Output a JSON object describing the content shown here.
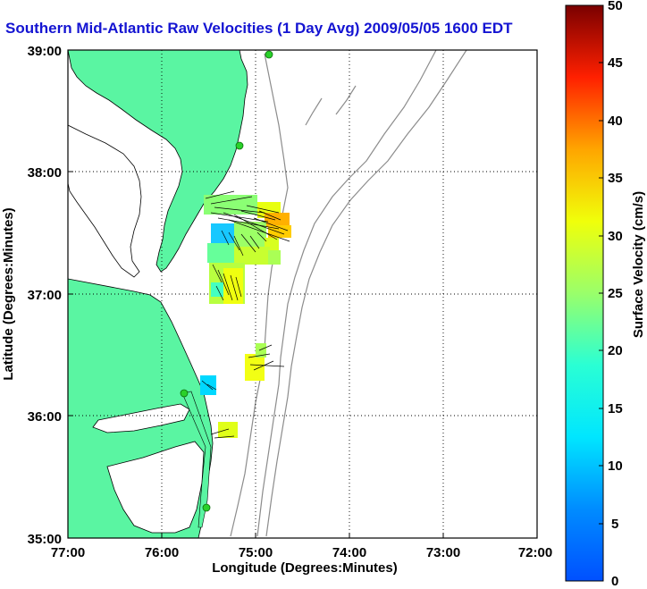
{
  "title": "Southern Mid-Atlantic Raw Velocities (1 Day Avg) 2009/05/05 1600 EDT",
  "map": {
    "xlabel": "Longitude (Degrees:Minutes)",
    "ylabel": "Latitude (Degrees:Minutes)",
    "lon_range": [
      -77,
      -72
    ],
    "lat_range": [
      35,
      39
    ],
    "x_ticks": [
      "77:00",
      "76:00",
      "75:00",
      "74:00",
      "73:00",
      "72:00"
    ],
    "y_ticks": [
      "39:00",
      "38:00",
      "37:00",
      "36:00",
      "35:00"
    ],
    "grid": true,
    "land_color": "#5af5a2",
    "coast_color": "#000000",
    "bathymetry_color": "#8c8c8c",
    "vector_color": "#000000",
    "station_color": "#2ad12a"
  },
  "colorbar": {
    "label": "Surface Velocity (cm/s)",
    "min": 0,
    "max": 50,
    "ticks": [
      "50",
      "45",
      "40",
      "35",
      "30",
      "25",
      "20",
      "15",
      "10",
      "5",
      "0"
    ],
    "colormap": "jet"
  }
}
